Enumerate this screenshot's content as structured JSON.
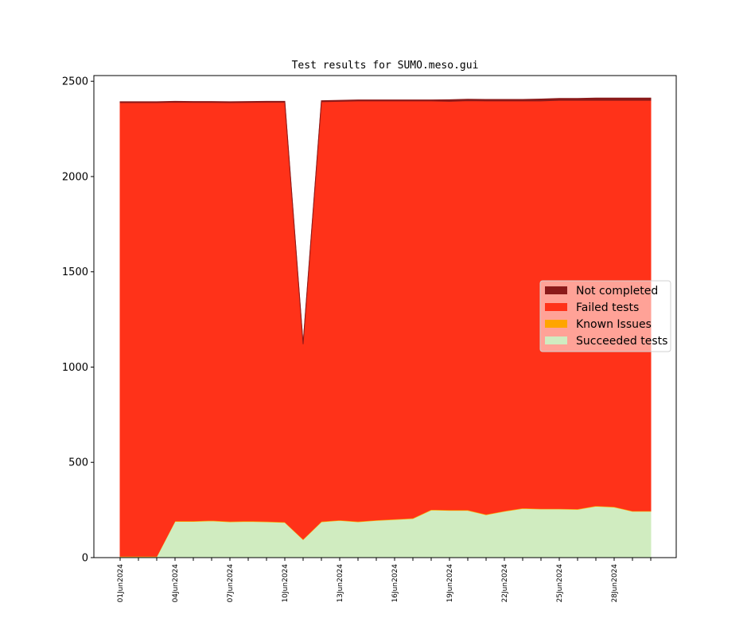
{
  "chart_data": {
    "type": "area",
    "stacked": true,
    "title": "Test results for SUMO.meso.gui",
    "xlabel": "",
    "ylabel": "",
    "ylim": [
      0,
      2530
    ],
    "yticks": [
      0,
      500,
      1000,
      1500,
      2000,
      2500
    ],
    "x_dates": [
      "2024-06-01",
      "2024-06-02",
      "2024-06-03",
      "2024-06-04",
      "2024-06-05",
      "2024-06-06",
      "2024-06-07",
      "2024-06-08",
      "2024-06-09",
      "2024-06-10",
      "2024-06-11",
      "2024-06-12",
      "2024-06-13",
      "2024-06-14",
      "2024-06-15",
      "2024-06-16",
      "2024-06-17",
      "2024-06-18",
      "2024-06-19",
      "2024-06-20",
      "2024-06-21",
      "2024-06-22",
      "2024-06-23",
      "2024-06-24",
      "2024-06-25",
      "2024-06-26",
      "2024-06-27",
      "2024-06-28",
      "2024-06-29",
      "2024-06-30"
    ],
    "xtick_labels": [
      "01Jun2024",
      "",
      "",
      "04Jun2024",
      "",
      "",
      "07Jun2024",
      "",
      "",
      "10Jun2024",
      "",
      "",
      "13Jun2024",
      "",
      "",
      "16Jun2024",
      "",
      "",
      "19Jun2024",
      "",
      "",
      "22Jun2024",
      "",
      "",
      "25Jun2024",
      "",
      "",
      "28Jun2024",
      "",
      ""
    ],
    "series": [
      {
        "name": "Succeeded tests",
        "color": "#d0ecc0",
        "values": [
          5,
          5,
          5,
          190,
          190,
          193,
          188,
          190,
          188,
          185,
          95,
          188,
          195,
          188,
          195,
          200,
          205,
          250,
          248,
          248,
          225,
          243,
          258,
          255,
          255,
          253,
          270,
          265,
          243,
          243
        ]
      },
      {
        "name": "Known Issues",
        "color": "#ffa500",
        "values": [
          3,
          3,
          3,
          3,
          3,
          3,
          3,
          3,
          3,
          3,
          3,
          3,
          3,
          3,
          3,
          3,
          3,
          3,
          3,
          3,
          3,
          3,
          3,
          3,
          3,
          3,
          3,
          3,
          3,
          3
        ]
      },
      {
        "name": "Failed tests",
        "color": "#ff3219",
        "values": [
          2380,
          2380,
          2380,
          2197,
          2196,
          2193,
          2197,
          2196,
          2199,
          2202,
          1022,
          2202,
          2197,
          2206,
          2199,
          2194,
          2189,
          2144,
          2144,
          2147,
          2169,
          2151,
          2136,
          2139,
          2142,
          2144,
          2127,
          2132,
          2154,
          2154
        ]
      },
      {
        "name": "Not completed",
        "color": "#8b1a1a",
        "values": [
          5,
          5,
          5,
          5,
          5,
          5,
          5,
          5,
          5,
          5,
          5,
          5,
          5,
          5,
          5,
          5,
          5,
          5,
          8,
          8,
          8,
          8,
          8,
          10,
          10,
          10,
          12,
          12,
          12,
          12
        ]
      }
    ],
    "legend": {
      "position": "center-right",
      "entries": [
        "Not completed",
        "Failed tests",
        "Known Issues",
        "Succeeded tests"
      ]
    },
    "grid": false
  }
}
